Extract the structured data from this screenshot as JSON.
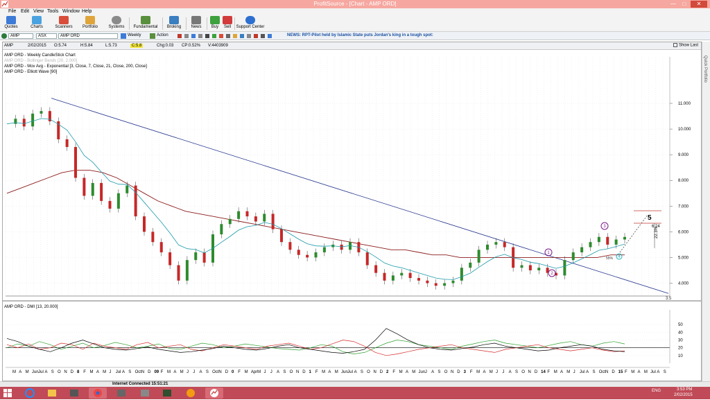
{
  "window": {
    "title": "ProfitSource - [Chart - AMP ORD]",
    "min": "—",
    "max": "□",
    "close": "✕"
  },
  "menu": [
    "File",
    "Edit",
    "View",
    "Tools",
    "Window",
    "Help"
  ],
  "toolbar": [
    {
      "label": "Quotes",
      "color": "#3d7bd6"
    },
    {
      "label": "Charts",
      "color": "#4aa3e0"
    },
    {
      "label": "Scanners",
      "color": "#d94c3a"
    },
    {
      "label": "Portfolio",
      "color": "#e0a53a"
    },
    {
      "label": "Systems",
      "color": "#8a8a8a"
    },
    {
      "label": "Fundamental",
      "color": "#5a8f3d"
    },
    {
      "label": "Broking",
      "color": "#3a7fc0"
    },
    {
      "label": "News",
      "color": "#777777"
    },
    {
      "label": "Buy",
      "color": "#3da13d"
    },
    {
      "label": "Sell",
      "color": "#d23b3b"
    },
    {
      "label": "Support Center",
      "color": "#2d6fd0"
    }
  ],
  "infobar": {
    "symbol": "AMP",
    "exchange": "ASX",
    "name": "AMP ORD",
    "period": "Weekly",
    "action": "Action",
    "news": "NEWS: RPT-Pilot held by Islamic State puts Jordan's king in a tough spot:"
  },
  "chart_header": {
    "symbol": "AMP",
    "date": "2/02/2015",
    "open": "O:5.74",
    "high": "H:5.84",
    "low": "L:5.73",
    "close": "C:5.8",
    "change": "Chg:0.03",
    "change_pct": "CP:0.52%",
    "volume": "V:4403909",
    "show_last": "Show Last"
  },
  "legend": [
    {
      "text": "AMP ORD - Weekly CandleStick Chart",
      "color": "#000000"
    },
    {
      "text": "AMP ORD - Bollinger Bands [20, 2.000]",
      "color": "#b8b8b8"
    },
    {
      "text": "AMP ORD - Mov Avg - Exponential [3, Close, 7, Close, 21, Close, 200, Close]",
      "color": "#000000"
    },
    {
      "text": "AMP ORD - Elliott Wave [90]",
      "color": "#000000"
    }
  ],
  "indicator_label": "AMP ORD - DMI [13, 20.000]",
  "annotations": {
    "wave_1": "1",
    "wave_2": "2",
    "wave_3": "3",
    "wave_4": "4",
    "wave_5": "5",
    "target": "6.24",
    "range_label": "22.3%",
    "fib_label": "55%",
    "trend_end": "3.5"
  },
  "x_ticks": [
    "M",
    "A",
    "M",
    "Jun",
    "Jul",
    "A",
    "S",
    "O",
    "N",
    "D",
    "8",
    "F",
    "M",
    "A",
    "M",
    "J",
    "Jul",
    "A",
    "S",
    "Oct",
    "N",
    "D",
    "09",
    "F",
    "M",
    "A",
    "M",
    "J",
    "J",
    "A",
    "S",
    "Oct",
    "N",
    "D",
    "0",
    "F",
    "M",
    "Apr",
    "M",
    "J",
    "J",
    "A",
    "S",
    "O",
    "N",
    "D",
    "1",
    "F",
    "M",
    "A",
    "M",
    "Jun",
    "Jul",
    "A",
    "S",
    "O",
    "N",
    "D",
    "2",
    "F",
    "M",
    "A",
    "M",
    "Jun",
    "J",
    "A",
    "S",
    "O",
    "N",
    "D",
    "3",
    "F",
    "M",
    "A",
    "M",
    "J",
    "J",
    "A",
    "S",
    "O",
    "N",
    "D",
    "14",
    "F",
    "M",
    "A",
    "M",
    "J",
    "Jul",
    "A",
    "S",
    "Oct",
    "N",
    "D",
    "15",
    "F",
    "M",
    "A",
    "M",
    "Jul",
    "A",
    "S"
  ],
  "status": {
    "connection": "Internet Connected 15:51:21"
  },
  "tray": {
    "lang": "ENG",
    "time": "3:53 PM",
    "date": "2/02/2015"
  },
  "chart_data": {
    "type": "line",
    "price_axis": {
      "ylim": [
        3.5,
        12.0
      ],
      "ticks": [
        "11.000",
        "10.000",
        "9.000",
        "8.000",
        "7.000",
        "6.000",
        "5.000",
        "4.000"
      ]
    },
    "close": [
      10.2,
      10.4,
      10.1,
      10.6,
      10.7,
      10.3,
      9.6,
      9.3,
      8.1,
      7.4,
      7.9,
      7.2,
      6.9,
      7.5,
      7.8,
      6.6,
      6.0,
      5.6,
      5.2,
      4.7,
      4.1,
      4.9,
      5.2,
      4.8,
      5.9,
      6.3,
      6.5,
      6.8,
      6.6,
      6.4,
      6.7,
      6.1,
      5.6,
      5.3,
      5.1,
      5.0,
      5.2,
      5.4,
      5.5,
      5.3,
      5.6,
      5.2,
      4.7,
      4.4,
      4.1,
      4.3,
      4.4,
      4.2,
      4.1,
      4.0,
      3.9,
      4.0,
      4.1,
      4.6,
      4.8,
      5.3,
      5.5,
      5.6,
      5.4,
      4.6,
      4.7,
      4.5,
      4.6,
      4.4,
      4.3,
      4.9,
      5.2,
      5.4,
      5.6,
      5.8,
      5.5,
      5.7,
      5.8
    ],
    "mov_avg_200": [
      7.5,
      7.7,
      7.9,
      8.1,
      8.3,
      8.4,
      8.4,
      8.3,
      8.1,
      7.8,
      7.5,
      7.2,
      7.0,
      6.8,
      6.7,
      6.6,
      6.5,
      6.4,
      6.3,
      6.2,
      6.1,
      6.0,
      5.9,
      5.8,
      5.7,
      5.6,
      5.5,
      5.4,
      5.3,
      5.3,
      5.2,
      5.1,
      5.1,
      5.0,
      5.0,
      5.0,
      5.0,
      5.0,
      5.0,
      5.0,
      5.0,
      5.0,
      5.0,
      5.0,
      5.1,
      5.1
    ],
    "trendline": {
      "from": [
        0,
        11.2
      ],
      "to": [
        1,
        3.6
      ]
    },
    "dmi": {
      "ylim": [
        0,
        60
      ],
      "ticks": [
        "50",
        "40",
        "30",
        "20",
        "10"
      ],
      "adx": [
        32,
        28,
        22,
        18,
        15,
        20,
        26,
        30,
        25,
        20,
        18,
        17,
        19,
        21,
        18,
        16,
        14,
        15,
        17,
        19,
        22,
        20,
        18,
        17,
        19,
        22,
        24,
        20,
        18,
        16,
        14,
        13,
        15,
        18,
        30,
        45,
        38,
        30,
        24,
        20,
        18,
        17,
        19,
        21,
        24,
        26,
        22,
        20,
        18,
        16,
        17,
        20,
        22,
        24,
        22,
        18,
        16,
        15
      ],
      "plus_di": [
        20,
        25,
        22,
        28,
        24,
        18,
        22,
        26,
        20,
        23,
        27,
        24,
        20,
        22,
        25,
        19,
        18,
        22,
        26,
        24,
        20,
        22,
        25,
        23,
        21,
        19,
        18,
        17,
        20,
        24,
        22,
        15,
        12,
        14,
        20,
        26,
        30,
        28,
        24,
        22,
        20,
        18,
        22,
        25,
        28,
        30,
        26,
        24,
        22,
        20,
        23,
        26,
        28,
        24,
        22,
        26,
        28,
        25
      ],
      "minus_di": [
        24,
        20,
        25,
        18,
        20,
        26,
        24,
        18,
        26,
        22,
        20,
        18,
        24,
        27,
        20,
        22,
        24,
        18,
        16,
        20,
        24,
        22,
        20,
        18,
        22,
        24,
        26,
        22,
        18,
        20,
        25,
        30,
        28,
        22,
        14,
        10,
        12,
        15,
        18,
        20,
        22,
        24,
        20,
        18,
        16,
        14,
        18,
        20,
        22,
        24,
        20,
        18,
        16,
        18,
        20,
        17,
        15,
        16
      ]
    }
  }
}
